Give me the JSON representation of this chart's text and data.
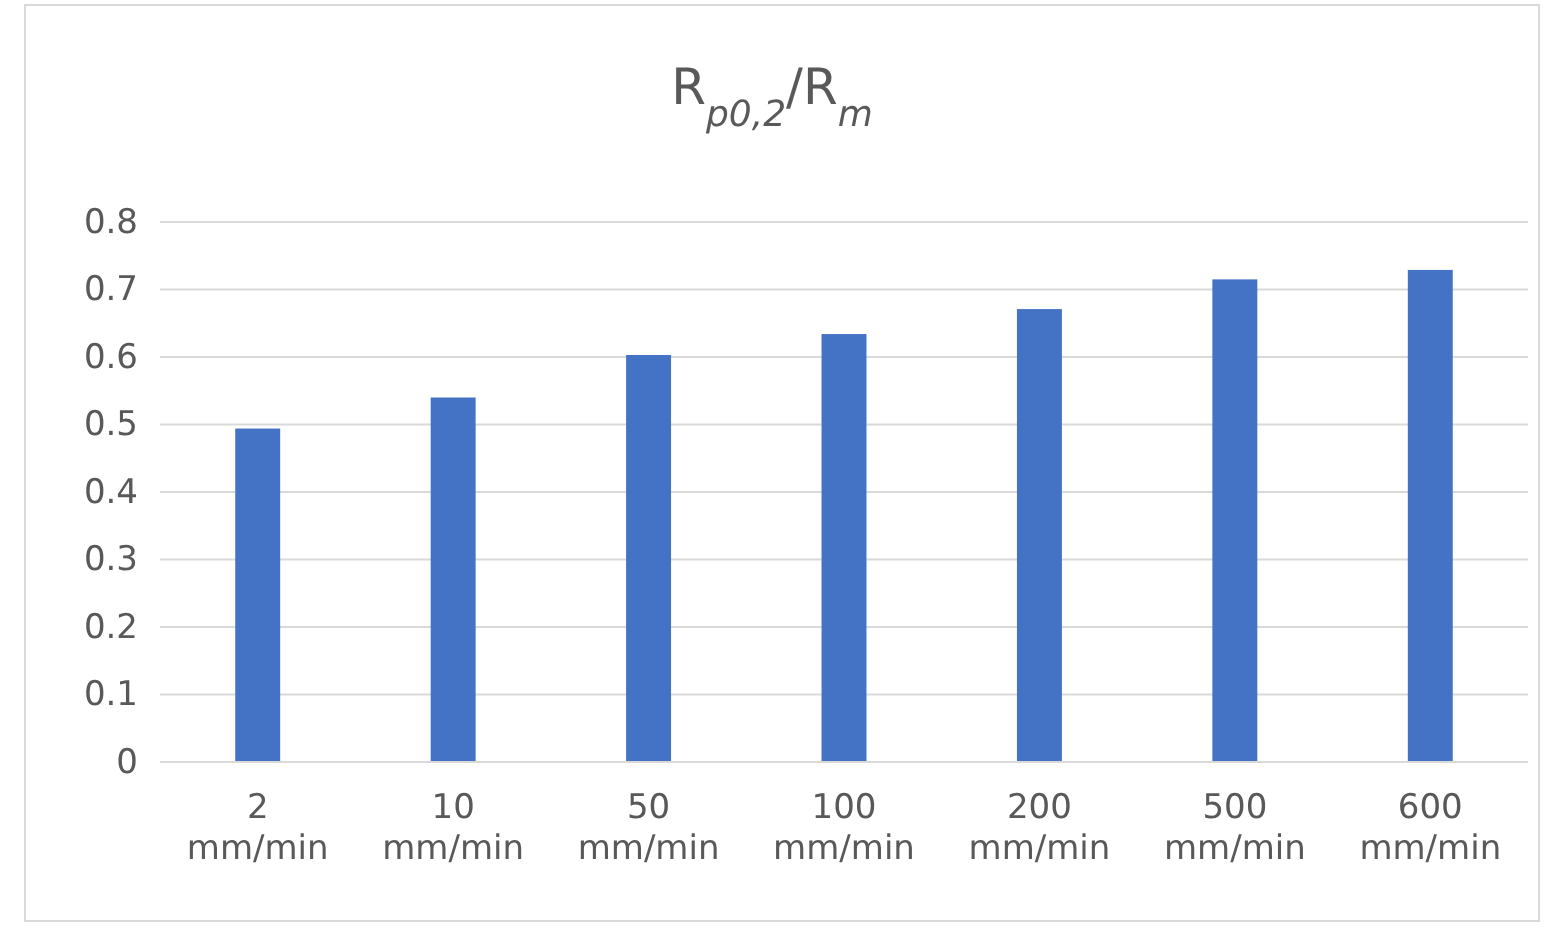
{
  "chart_data": {
    "type": "bar",
    "title": "R$_{p0,2}$/R$_{m}$",
    "categories": [
      "2 mm/min",
      "10 mm/min",
      "50 mm/min",
      "100 mm/min",
      "200 mm/min",
      "500 mm/min",
      "600 mm/min"
    ],
    "values": [
      0.494,
      0.54,
      0.603,
      0.634,
      0.671,
      0.715,
      0.729
    ],
    "color": "#4472c4",
    "ylim": [
      0,
      0.8
    ],
    "yticks": [
      {
        "value": 0,
        "label": "0"
      },
      0.1,
      0.2,
      0.3,
      0.4,
      0.5,
      0.6,
      0.7,
      0.8
    ],
    "grid": "y"
  }
}
